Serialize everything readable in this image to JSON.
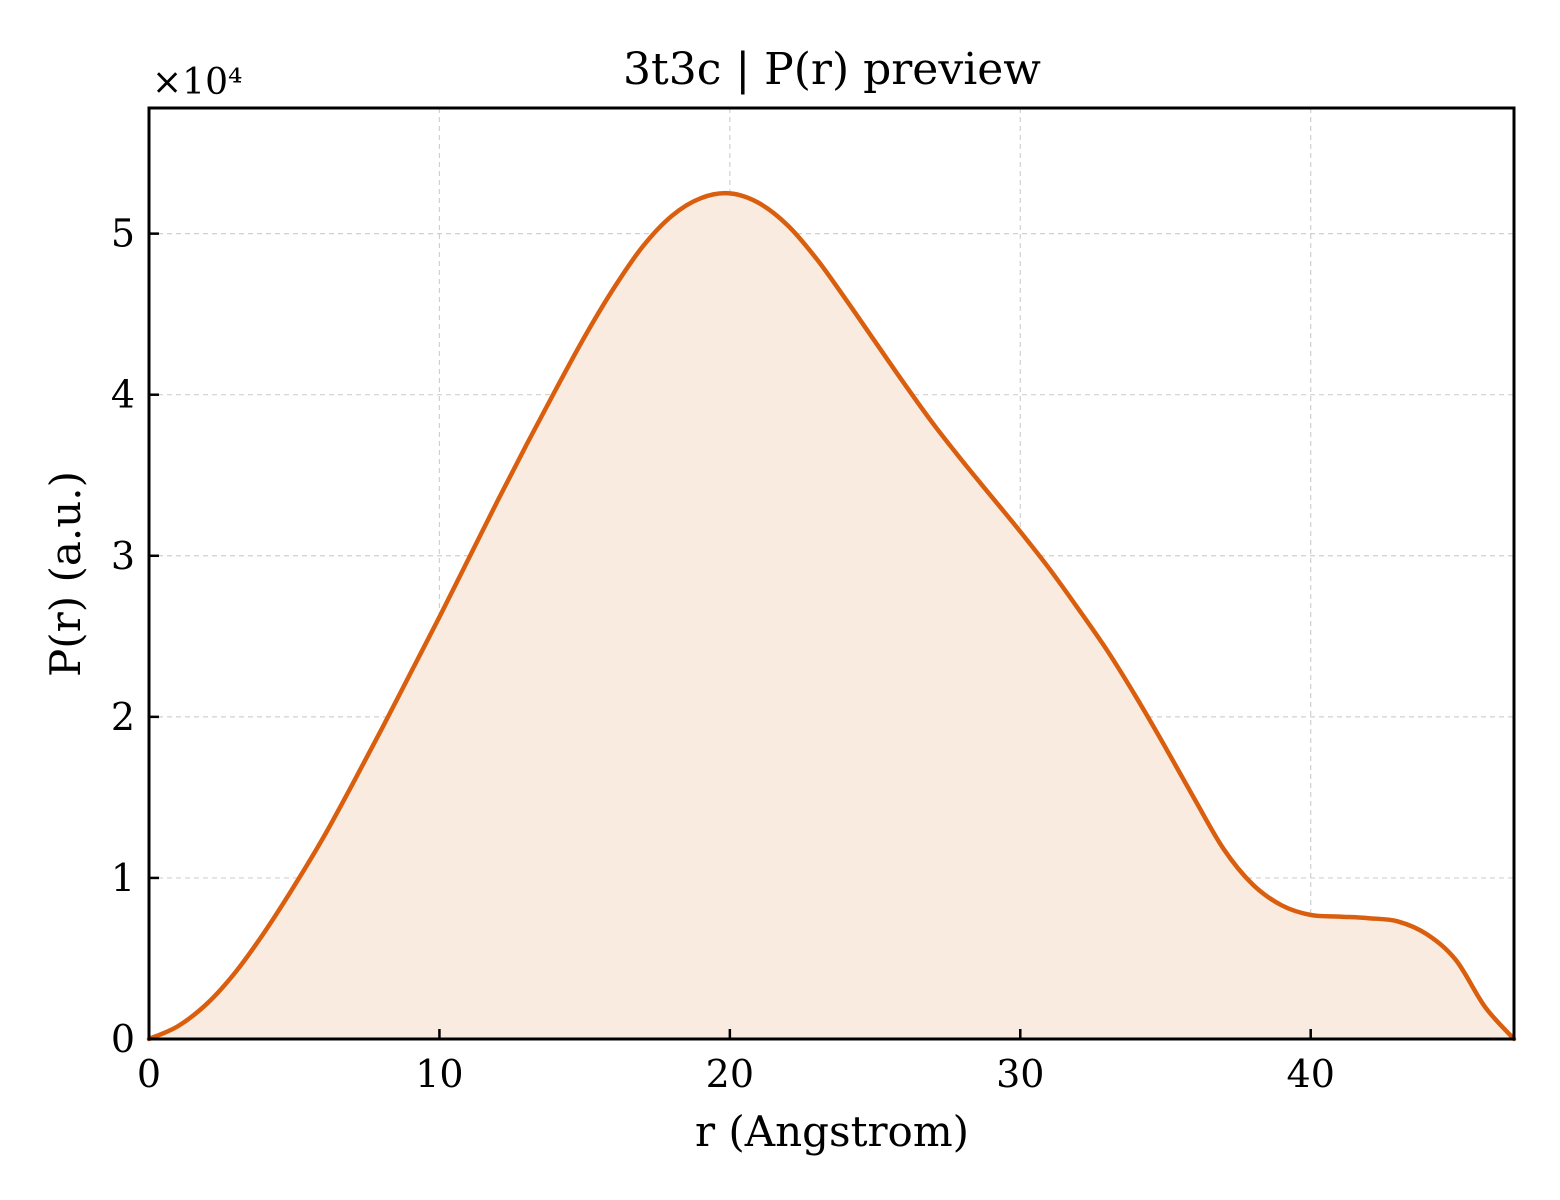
{
  "chart_data": {
    "type": "area",
    "title": "3t3c | P(r) preview",
    "xlabel": "r (Angstrom)",
    "ylabel": "P(r) (a.u.)",
    "y_multiplier_label": "×10⁴",
    "xlim": [
      0,
      47
    ],
    "ylim": [
      0,
      5.78
    ],
    "x_ticks": [
      0,
      10,
      20,
      30,
      40
    ],
    "y_ticks": [
      0,
      1,
      2,
      3,
      4,
      5
    ],
    "grid": true,
    "legend": "none",
    "colors": {
      "line": "#d95f0e",
      "fill": "#f9ebe0"
    },
    "series": [
      {
        "x": [
          0,
          1,
          2,
          3,
          4,
          5,
          6,
          7,
          8,
          9,
          10,
          11,
          12,
          13,
          14,
          15,
          16,
          17,
          18,
          19,
          20,
          21,
          22,
          23,
          24,
          25,
          26,
          27,
          28,
          29,
          30,
          31,
          32,
          33,
          34,
          35,
          36,
          37,
          38,
          39,
          40,
          41,
          42,
          43,
          44,
          45,
          46,
          47
        ],
        "y": [
          0.0,
          0.08,
          0.22,
          0.42,
          0.67,
          0.95,
          1.25,
          1.58,
          1.92,
          2.27,
          2.62,
          2.98,
          3.34,
          3.69,
          4.03,
          4.36,
          4.66,
          4.92,
          5.11,
          5.22,
          5.25,
          5.19,
          5.05,
          4.84,
          4.59,
          4.33,
          4.07,
          3.82,
          3.59,
          3.37,
          3.15,
          2.92,
          2.67,
          2.41,
          2.12,
          1.81,
          1.49,
          1.18,
          0.96,
          0.83,
          0.77,
          0.76,
          0.75,
          0.73,
          0.65,
          0.49,
          0.2,
          0.0
        ]
      }
    ]
  }
}
